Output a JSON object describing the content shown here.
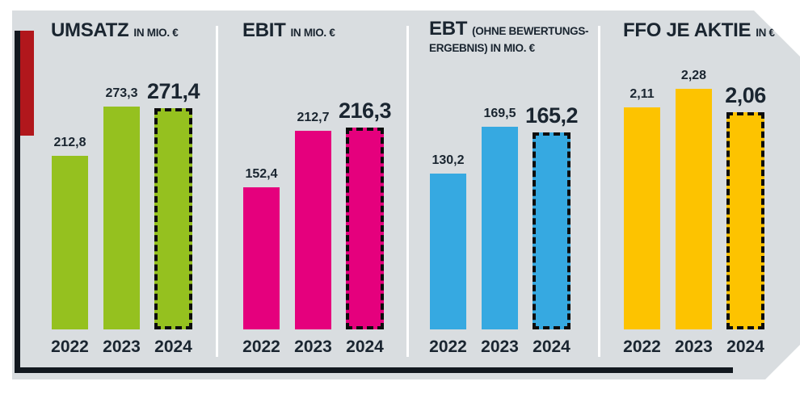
{
  "colors": {
    "background": "#d9dde0",
    "text": "#1a2530",
    "axis": "#12181f",
    "accent_red": "#b1171c",
    "divider": "#ffffff",
    "dash_outline": "#0d0d0d"
  },
  "chart_data": [
    {
      "type": "bar",
      "title": "UMSATZ",
      "unit": "IN MIO. €",
      "categories": [
        "2022",
        "2023",
        "2024"
      ],
      "values": [
        212.8,
        273.3,
        271.4
      ],
      "value_labels": [
        "212,8",
        "273,3",
        "271,4"
      ],
      "bar_color": "#95c11f",
      "highlight_index": 2,
      "highlight_style": "dashed-outline",
      "ylim": [
        0,
        290
      ],
      "grid": false,
      "legend": "none"
    },
    {
      "type": "bar",
      "title": "EBIT",
      "unit": "IN MIO. €",
      "categories": [
        "2022",
        "2023",
        "2024"
      ],
      "values": [
        152.4,
        212.7,
        216.3
      ],
      "value_labels": [
        "152,4",
        "212,7",
        "216,3"
      ],
      "bar_color": "#e5007d",
      "highlight_index": 2,
      "highlight_style": "dashed-outline",
      "ylim": [
        0,
        235
      ],
      "grid": false,
      "legend": "none"
    },
    {
      "type": "bar",
      "title": "EBT",
      "unit": "(OHNE BEWERTUNGS-ERGEBNIS) IN MIO. €",
      "categories": [
        "2022",
        "2023",
        "2024"
      ],
      "values": [
        130.2,
        169.5,
        165.2
      ],
      "value_labels": [
        "130,2",
        "169,5",
        "165,2"
      ],
      "bar_color": "#36a9e1",
      "highlight_index": 2,
      "highlight_style": "dashed-outline",
      "ylim": [
        0,
        185
      ],
      "grid": false,
      "legend": "none"
    },
    {
      "type": "bar",
      "title": "FFO JE AKTIE",
      "unit": "IN €",
      "categories": [
        "2022",
        "2023",
        "2024"
      ],
      "values": [
        2.11,
        2.28,
        2.06
      ],
      "value_labels": [
        "2,11",
        "2,28",
        "2,06"
      ],
      "bar_color": "#fdc300",
      "highlight_index": 2,
      "highlight_style": "dashed-outline",
      "ylim": [
        0,
        2.4
      ],
      "grid": false,
      "legend": "none"
    }
  ]
}
